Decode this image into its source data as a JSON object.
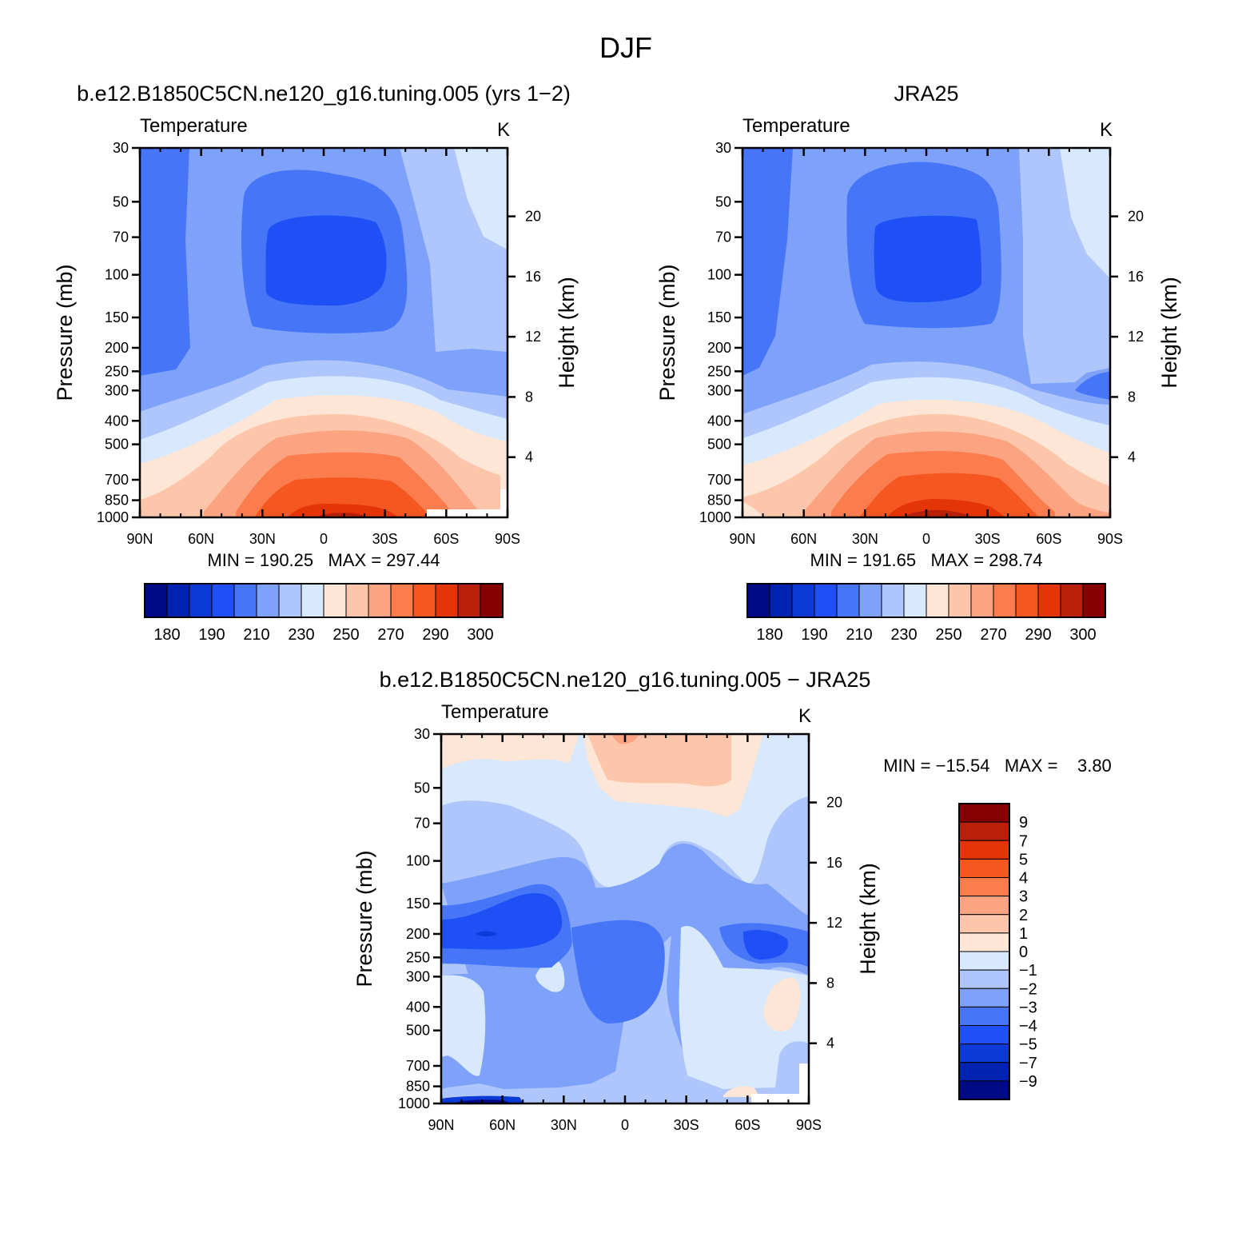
{
  "figure": {
    "title": "DJF"
  },
  "chart_data": [
    {
      "type": "contour",
      "title": "b.e12.B1850C5CN.ne120_g16.tuning.005 (yrs 1−2)",
      "field_label": "Temperature",
      "units": "K",
      "ylabel": "Pressure (mb)",
      "ylabel_right": "Height (km)",
      "x_ticks": [
        "90N",
        "60N",
        "30N",
        "0",
        "30S",
        "60S",
        "90S"
      ],
      "y_ticks": [
        "30",
        "50",
        "70",
        "100",
        "150",
        "200",
        "250",
        "300",
        "400",
        "500",
        "700",
        "850",
        "1000"
      ],
      "y_ticks_right": [
        "20",
        "16",
        "12",
        "8",
        "4"
      ],
      "y_scale": "log",
      "min_label": "MIN",
      "min": "190.25",
      "max_label": "MAX",
      "max": "297.44",
      "colorbar": {
        "orientation": "horizontal",
        "labels": [
          "180",
          "190",
          "210",
          "230",
          "250",
          "270",
          "290",
          "300"
        ],
        "colors": [
          "#000a85",
          "#0022b0",
          "#0b3ad6",
          "#1e50f5",
          "#4676f7",
          "#7ea2f9",
          "#aec6fb",
          "#d8e8fd",
          "#fde6d6",
          "#fdc6ab",
          "#fca482",
          "#fb7c4c",
          "#f6561f",
          "#e33508",
          "#b8200a",
          "#850000"
        ]
      }
    },
    {
      "type": "contour",
      "title": "JRA25",
      "field_label": "Temperature",
      "units": "K",
      "ylabel": "Pressure (mb)",
      "ylabel_right": "Height (km)",
      "x_ticks": [
        "90N",
        "60N",
        "30N",
        "0",
        "30S",
        "60S",
        "90S"
      ],
      "y_ticks": [
        "30",
        "50",
        "70",
        "100",
        "150",
        "200",
        "250",
        "300",
        "400",
        "500",
        "700",
        "850",
        "1000"
      ],
      "y_ticks_right": [
        "20",
        "16",
        "12",
        "8",
        "4"
      ],
      "y_scale": "log",
      "min_label": "MIN",
      "min": "191.65",
      "max_label": "MAX",
      "max": "298.74",
      "colorbar": {
        "orientation": "horizontal",
        "labels": [
          "180",
          "190",
          "210",
          "230",
          "250",
          "270",
          "290",
          "300"
        ],
        "colors": [
          "#000a85",
          "#0022b0",
          "#0b3ad6",
          "#1e50f5",
          "#4676f7",
          "#7ea2f9",
          "#aec6fb",
          "#d8e8fd",
          "#fde6d6",
          "#fdc6ab",
          "#fca482",
          "#fb7c4c",
          "#f6561f",
          "#e33508",
          "#b8200a",
          "#850000"
        ]
      }
    },
    {
      "type": "contour",
      "title": "b.e12.B1850C5CN.ne120_g16.tuning.005 − JRA25",
      "field_label": "Temperature",
      "units": "K",
      "ylabel": "Pressure (mb)",
      "ylabel_right": "Height (km)",
      "x_ticks": [
        "90N",
        "60N",
        "30N",
        "0",
        "30S",
        "60S",
        "90S"
      ],
      "y_ticks": [
        "30",
        "50",
        "70",
        "100",
        "150",
        "200",
        "250",
        "300",
        "400",
        "500",
        "700",
        "850",
        "1000"
      ],
      "y_ticks_right": [
        "20",
        "16",
        "12",
        "8",
        "4"
      ],
      "y_scale": "log",
      "min_label": "MIN",
      "min": "−15.54",
      "max_label": "MAX",
      "max": "3.80",
      "colorbar": {
        "orientation": "vertical",
        "labels": [
          "9",
          "7",
          "5",
          "4",
          "3",
          "2",
          "1",
          "0",
          "−1",
          "−2",
          "−3",
          "−4",
          "−5",
          "−7",
          "−9"
        ],
        "colors": [
          "#850000",
          "#b8200a",
          "#e33508",
          "#f6561f",
          "#fb7c4c",
          "#fca482",
          "#fdc6ab",
          "#fde6d6",
          "#d8e8fd",
          "#aec6fb",
          "#7ea2f9",
          "#4676f7",
          "#1e50f5",
          "#0b3ad6",
          "#0022b0",
          "#000a85"
        ]
      }
    }
  ]
}
